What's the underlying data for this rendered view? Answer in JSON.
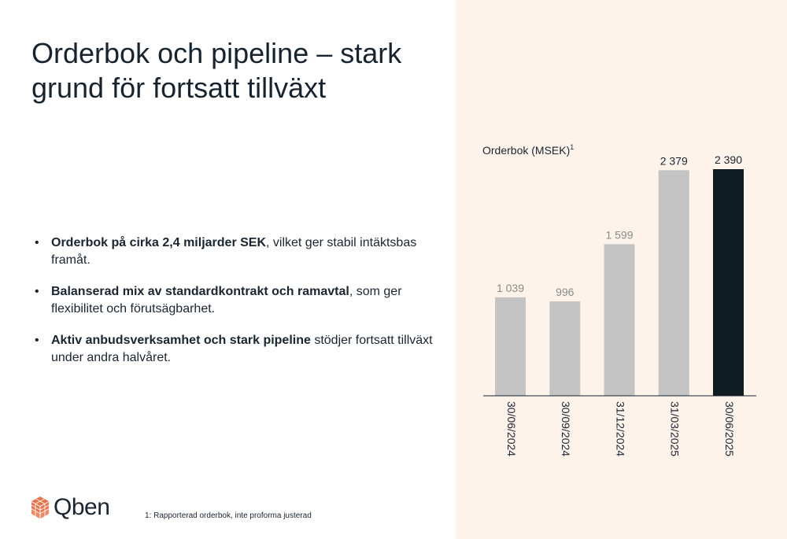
{
  "title": "Orderbok och pipeline – stark grund för fortsatt tillväxt",
  "bullets": [
    {
      "bold": "Orderbok på cirka 2,4 miljarder SEK",
      "rest": ", vilket ger stabil intäktsbas framåt."
    },
    {
      "bold": "Balanserad mix av standardkontrakt och ramavtal",
      "rest": ", som ger flexibilitet och förutsägbarhet."
    },
    {
      "bold": "Aktiv anbudsverksamhet och stark pipeline",
      "rest": " stödjer fortsatt tillväxt under andra halvåret."
    }
  ],
  "logo": {
    "text": "Qben",
    "icon": "cube-stack-icon"
  },
  "footnote": "1: Rapporterad orderbok, inte proforma justerad",
  "colors": {
    "bar": "#c4c4c4",
    "highlight": "#0f1c22",
    "label": "#8a8a8a",
    "panel": "#fdf3eb",
    "logo": "#e8734a"
  },
  "chart_data": {
    "type": "bar",
    "title": "Orderbok (MSEK)",
    "title_superscript": "1",
    "categories": [
      "30/06/2024",
      "30/09/2024",
      "31/12/2024",
      "31/03/2025",
      "30/06/2025"
    ],
    "values": [
      1039,
      996,
      1599,
      2379,
      2390
    ],
    "value_labels": [
      "1 039",
      "996",
      "1 599",
      "2 379",
      "2 390"
    ],
    "highlight_index": 4,
    "ylim": [
      0,
      2390
    ],
    "grid": false,
    "legend": "none"
  }
}
